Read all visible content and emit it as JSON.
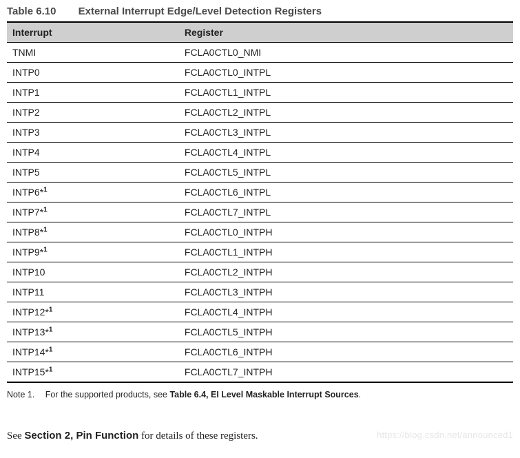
{
  "caption": {
    "number": "Table 6.10",
    "title": "External Interrupt Edge/Level Detection Registers"
  },
  "columns": [
    "Interrupt",
    "Register"
  ],
  "rows": [
    {
      "interrupt": "TNMI",
      "note": false,
      "register": "FCLA0CTL0_NMI"
    },
    {
      "interrupt": "INTP0",
      "note": false,
      "register": "FCLA0CTL0_INTPL"
    },
    {
      "interrupt": "INTP1",
      "note": false,
      "register": "FCLA0CTL1_INTPL"
    },
    {
      "interrupt": "INTP2",
      "note": false,
      "register": "FCLA0CTL2_INTPL"
    },
    {
      "interrupt": "INTP3",
      "note": false,
      "register": "FCLA0CTL3_INTPL"
    },
    {
      "interrupt": "INTP4",
      "note": false,
      "register": "FCLA0CTL4_INTPL"
    },
    {
      "interrupt": "INTP5",
      "note": false,
      "register": "FCLA0CTL5_INTPL"
    },
    {
      "interrupt": "INTP6",
      "note": true,
      "register": "FCLA0CTL6_INTPL"
    },
    {
      "interrupt": "INTP7",
      "note": true,
      "register": "FCLA0CTL7_INTPL"
    },
    {
      "interrupt": "INTP8",
      "note": true,
      "register": "FCLA0CTL0_INTPH"
    },
    {
      "interrupt": "INTP9",
      "note": true,
      "register": "FCLA0CTL1_INTPH"
    },
    {
      "interrupt": "INTP10",
      "note": false,
      "register": "FCLA0CTL2_INTPH"
    },
    {
      "interrupt": "INTP11",
      "note": false,
      "register": "FCLA0CTL3_INTPH"
    },
    {
      "interrupt": "INTP12",
      "note": true,
      "register": "FCLA0CTL4_INTPH"
    },
    {
      "interrupt": "INTP13",
      "note": true,
      "register": "FCLA0CTL5_INTPH"
    },
    {
      "interrupt": "INTP14",
      "note": true,
      "register": "FCLA0CTL6_INTPH"
    },
    {
      "interrupt": "INTP15",
      "note": true,
      "register": "FCLA0CTL7_INTPH"
    }
  ],
  "note_marker": "*",
  "note_sup": "1",
  "note": {
    "label": "Note 1.",
    "text_prefix": "For the supported products, see ",
    "text_bold": "Table 6.4, EI Level Maskable Interrupt Sources",
    "text_suffix": "."
  },
  "footer": {
    "see": "See ",
    "section": "Section 2, Pin Function",
    "rest": " for details of these registers."
  },
  "watermark": "https://blog.csdn.net/announced1"
}
